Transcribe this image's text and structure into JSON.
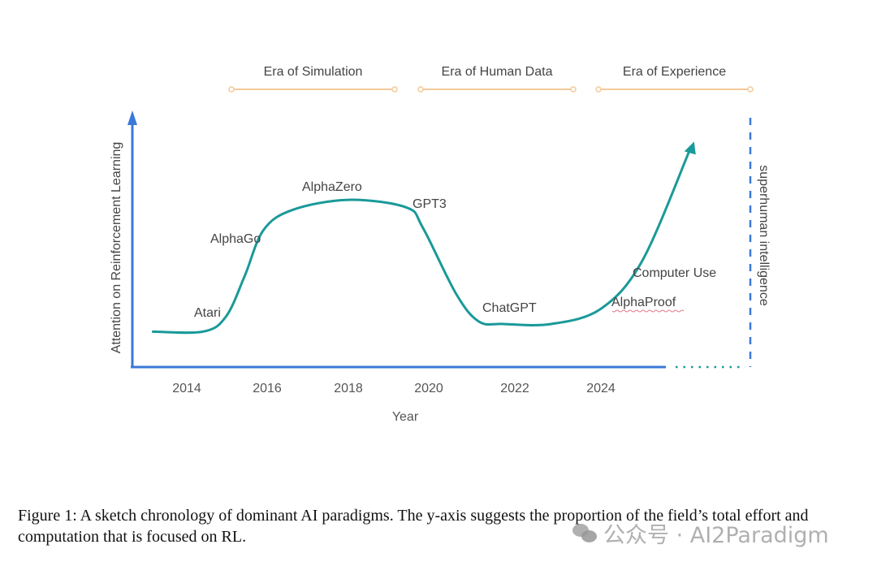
{
  "chart_data": {
    "type": "line",
    "title": "",
    "xlabel": "Year",
    "ylabel": "Attention on Reinforcement Learning",
    "x_ticks": [
      "2014",
      "2016",
      "2018",
      "2020",
      "2022",
      "2024"
    ],
    "xlim": [
      2012.35,
      2025.7
    ],
    "ylim": [
      0,
      1
    ],
    "grid": false,
    "series": [
      {
        "x": [
          2013.16,
          2014.4,
          2014.95,
          2015.4,
          2015.85,
          2016.55,
          2017.9,
          2019.3,
          2019.7,
          2020.5,
          2021.05,
          2021.65,
          2022.8,
          2024.0,
          2025.0,
          2026.25
        ],
        "y": [
          0.14,
          0.14,
          0.2,
          0.36,
          0.54,
          0.62,
          0.66,
          0.63,
          0.55,
          0.29,
          0.18,
          0.17,
          0.17,
          0.23,
          0.42,
          0.89
        ]
      }
    ],
    "annotations": [
      {
        "text": "Atari"
      },
      {
        "text": "AlphaGo"
      },
      {
        "text": "AlphaZero"
      },
      {
        "text": "GPT3"
      },
      {
        "text": "ChatGPT"
      },
      {
        "text": "AlphaProof"
      },
      {
        "text": "Computer Use"
      }
    ],
    "eras": [
      {
        "label": "Era of Simulation"
      },
      {
        "label": "Era of Human Data"
      },
      {
        "label": "Era of Experience"
      }
    ],
    "limit_label": "superhuman intelligence",
    "colors": {
      "axis": "#3b78d8",
      "curve": "#1a9999",
      "era": "#f5c99a",
      "limit": "#3b78d8"
    }
  },
  "caption": "Figure 1: A sketch chronology of dominant AI paradigms. The y-axis suggests the proportion of the field’s total effort and computation that is focused on RL.",
  "watermark": "公众号 · AI2Paradigm"
}
